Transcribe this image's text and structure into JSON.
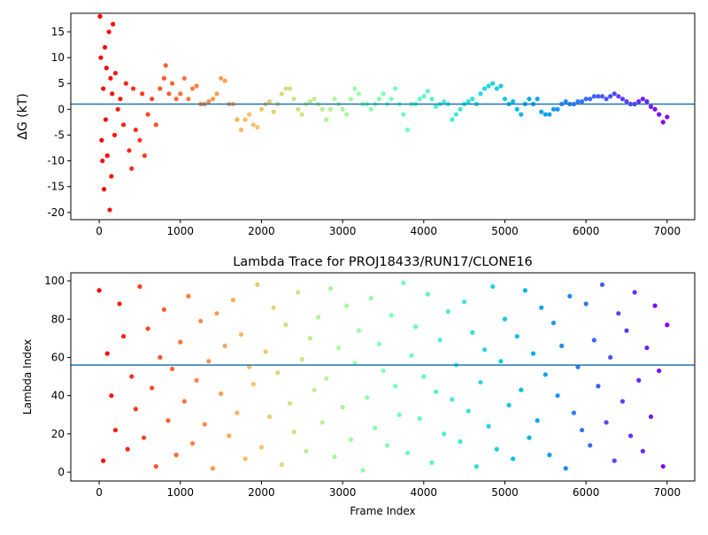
{
  "chart_data": [
    {
      "type": "scatter",
      "y_label": "ΔG (kT)",
      "xlim": [
        -350,
        7340
      ],
      "ylim": [
        -21.4,
        18.6
      ],
      "xticks": [
        0,
        1000,
        2000,
        3000,
        4000,
        5000,
        6000,
        7000
      ],
      "yticks": [
        -20,
        -15,
        -10,
        -5,
        0,
        5,
        10,
        15
      ],
      "colormap": "rainbow_r",
      "hline": {
        "y": 1,
        "color": "#1f77b4"
      },
      "x": [
        10,
        20,
        30,
        40,
        50,
        60,
        70,
        80,
        90,
        100,
        120,
        130,
        140,
        150,
        160,
        170,
        190,
        200,
        230,
        260,
        300,
        330,
        370,
        400,
        420,
        450,
        500,
        530,
        560,
        600,
        650,
        700,
        750,
        800,
        820,
        860,
        900,
        950,
        1000,
        1050,
        1100,
        1150,
        1200,
        1250,
        1300,
        1350,
        1400,
        1450,
        1500,
        1550,
        1600,
        1650,
        1700,
        1750,
        1800,
        1850,
        1900,
        1950,
        2000,
        2050,
        2100,
        2150,
        2200,
        2250,
        2300,
        2350,
        2400,
        2450,
        2500,
        2550,
        2600,
        2650,
        2700,
        2750,
        2800,
        2850,
        2900,
        2950,
        3000,
        3050,
        3100,
        3150,
        3200,
        3250,
        3300,
        3350,
        3400,
        3450,
        3500,
        3550,
        3600,
        3650,
        3700,
        3750,
        3800,
        3850,
        3900,
        3950,
        4000,
        4050,
        4100,
        4150,
        4200,
        4250,
        4300,
        4350,
        4400,
        4450,
        4500,
        4550,
        4600,
        4650,
        4700,
        4750,
        4800,
        4850,
        4900,
        4950,
        5000,
        5050,
        5100,
        5150,
        5200,
        5250,
        5300,
        5350,
        5400,
        5450,
        5500,
        5550,
        5600,
        5650,
        5700,
        5750,
        5800,
        5850,
        5900,
        5950,
        6000,
        6050,
        6100,
        6150,
        6200,
        6250,
        6300,
        6350,
        6400,
        6450,
        6500,
        6550,
        6600,
        6650,
        6700,
        6750,
        6800,
        6850,
        6900,
        6950,
        7000
      ],
      "y": [
        18,
        10,
        -6,
        -10,
        4,
        -15.5,
        12,
        -2,
        8,
        -9,
        15,
        -19.5,
        6,
        -13,
        3,
        16.5,
        -5,
        7,
        0,
        2,
        -3,
        5,
        -8,
        -11.5,
        4,
        -4,
        -6,
        3,
        -9,
        -1,
        2,
        -3,
        4,
        6,
        8.5,
        3,
        5,
        2,
        3,
        6,
        2,
        4,
        4.5,
        1,
        1,
        1.5,
        2,
        3,
        6,
        5.5,
        1,
        1,
        -2,
        -4,
        -2,
        -1,
        -3,
        -3.5,
        0,
        1,
        1.5,
        -0.5,
        1,
        3,
        4,
        4,
        2,
        0,
        -1,
        1,
        1.5,
        2,
        1,
        0,
        -2,
        0,
        2,
        1,
        0,
        -1,
        2,
        4,
        3,
        1,
        1,
        0,
        1,
        2,
        3,
        1,
        2,
        4,
        1,
        -1,
        -4,
        1,
        1,
        2,
        2.5,
        3.5,
        2,
        0.5,
        1,
        1.5,
        1,
        -2,
        -1,
        0,
        1,
        1.5,
        2,
        1,
        3,
        4,
        4.5,
        5,
        4,
        4.5,
        2,
        1,
        1.5,
        0,
        -1,
        1,
        2,
        1,
        2,
        -0.5,
        -1,
        -1,
        0,
        0,
        1,
        1.5,
        1,
        1,
        1.5,
        1.5,
        2,
        2,
        2.5,
        2.5,
        2.5,
        2,
        2.5,
        3,
        2.5,
        2,
        1.5,
        1,
        1,
        1.5,
        2,
        1.5,
        0.5,
        0,
        -1,
        -2.5,
        -1.5
      ]
    },
    {
      "type": "scatter",
      "title": "Lambda Trace for PROJ18433/RUN17/CLONE16",
      "x_label": "Frame Index",
      "y_label": "Lambda Index",
      "xlim": [
        -350,
        7340
      ],
      "ylim": [
        -4.6,
        104.2
      ],
      "xticks": [
        0,
        1000,
        2000,
        3000,
        4000,
        5000,
        6000,
        7000
      ],
      "yticks": [
        0,
        20,
        40,
        60,
        80,
        100
      ],
      "colormap": "rainbow_r",
      "hline": {
        "y": 56,
        "color": "#1f77b4"
      },
      "x": [
        0,
        50,
        100,
        150,
        200,
        250,
        300,
        350,
        400,
        450,
        500,
        550,
        600,
        650,
        700,
        750,
        800,
        850,
        900,
        950,
        1000,
        1050,
        1100,
        1150,
        1200,
        1250,
        1300,
        1350,
        1400,
        1450,
        1500,
        1550,
        1600,
        1650,
        1700,
        1750,
        1800,
        1850,
        1900,
        1950,
        2000,
        2050,
        2100,
        2150,
        2200,
        2250,
        2300,
        2350,
        2400,
        2450,
        2500,
        2550,
        2600,
        2650,
        2700,
        2750,
        2800,
        2850,
        2900,
        2950,
        3000,
        3050,
        3100,
        3150,
        3200,
        3250,
        3300,
        3350,
        3400,
        3450,
        3500,
        3550,
        3600,
        3650,
        3700,
        3750,
        3800,
        3850,
        3900,
        3950,
        4000,
        4050,
        4100,
        4150,
        4200,
        4250,
        4300,
        4350,
        4400,
        4450,
        4500,
        4550,
        4600,
        4650,
        4700,
        4750,
        4800,
        4850,
        4900,
        4950,
        5000,
        5050,
        5100,
        5150,
        5200,
        5250,
        5300,
        5350,
        5400,
        5450,
        5500,
        5550,
        5600,
        5650,
        5700,
        5750,
        5800,
        5850,
        5900,
        5950,
        6000,
        6050,
        6100,
        6150,
        6200,
        6250,
        6300,
        6350,
        6400,
        6450,
        6500,
        6550,
        6600,
        6650,
        6700,
        6750,
        6800,
        6850,
        6900,
        6950,
        7000
      ],
      "y": [
        95,
        6,
        62,
        40,
        22,
        88,
        71,
        12,
        50,
        33,
        97,
        18,
        75,
        44,
        3,
        60,
        85,
        27,
        54,
        9,
        68,
        37,
        92,
        15,
        48,
        79,
        25,
        58,
        2,
        83,
        41,
        66,
        19,
        90,
        31,
        72,
        7,
        55,
        46,
        98,
        13,
        63,
        29,
        86,
        52,
        4,
        77,
        36,
        21,
        94,
        59,
        11,
        70,
        43,
        81,
        26,
        49,
        96,
        8,
        65,
        34,
        87,
        17,
        57,
        74,
        1,
        39,
        91,
        23,
        67,
        53,
        14,
        82,
        45,
        30,
        99,
        10,
        61,
        76,
        28,
        50,
        93,
        5,
        42,
        69,
        20,
        84,
        38,
        56,
        16,
        89,
        32,
        73,
        3,
        47,
        64,
        24,
        97,
        12,
        58,
        80,
        35,
        7,
        71,
        43,
        95,
        18,
        62,
        27,
        86,
        51,
        9,
        78,
        40,
        66,
        2,
        92,
        31,
        55,
        22,
        88,
        14,
        69,
        45,
        98,
        26,
        60,
        6,
        83,
        37,
        74,
        19,
        94,
        48,
        11,
        65,
        29,
        87,
        53,
        3,
        77
      ]
    }
  ]
}
